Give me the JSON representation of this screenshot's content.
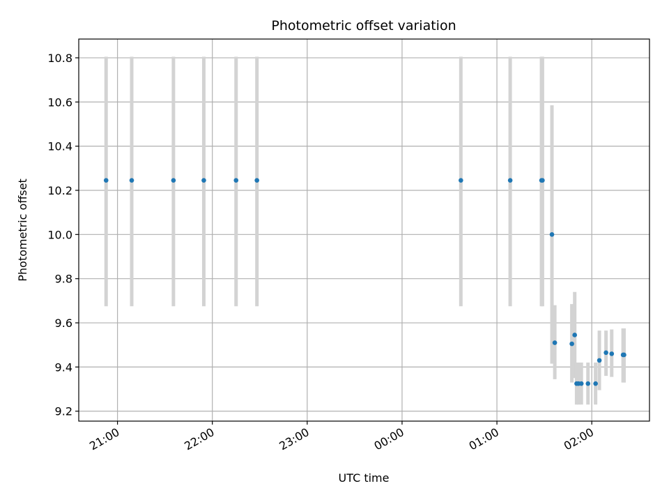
{
  "chart_data": {
    "type": "scatter",
    "title": "Photometric offset variation",
    "xlabel": "UTC time",
    "ylabel": "Photometric offset",
    "grid": true,
    "x_tick_labels": [
      "21:00",
      "22:00",
      "23:00",
      "00:00",
      "01:00",
      "02:00"
    ],
    "x_tick_minutes": [
      0,
      60,
      120,
      180,
      240,
      300
    ],
    "x_tick_rotation_deg": 30,
    "xlim_minutes": [
      -24.5,
      336.5
    ],
    "y_ticks": [
      9.2,
      9.4,
      9.6,
      9.8,
      10.0,
      10.2,
      10.4,
      10.6,
      10.8
    ],
    "y_tick_labels": [
      "9.2",
      "9.4",
      "9.6",
      "9.8",
      "10.0",
      "10.2",
      "10.4",
      "10.6",
      "10.8"
    ],
    "ylim": [
      9.155,
      10.885
    ],
    "colors": {
      "point": "#1f77b4",
      "errorbar": "#d3d3d3",
      "grid": "#b0b0b0"
    },
    "points": [
      {
        "t": 20.88,
        "y": 10.245,
        "lo": 9.675,
        "hi": 10.805
      },
      {
        "t": 21.15,
        "y": 10.245,
        "lo": 9.675,
        "hi": 10.805
      },
      {
        "t": 21.59,
        "y": 10.245,
        "lo": 9.675,
        "hi": 10.805
      },
      {
        "t": 21.91,
        "y": 10.245,
        "lo": 9.675,
        "hi": 10.805
      },
      {
        "t": 22.25,
        "y": 10.245,
        "lo": 9.675,
        "hi": 10.805
      },
      {
        "t": 22.47,
        "y": 10.245,
        "lo": 9.675,
        "hi": 10.805
      },
      {
        "t": 24.62,
        "y": 10.245,
        "lo": 9.675,
        "hi": 10.805
      },
      {
        "t": 25.14,
        "y": 10.245,
        "lo": 9.675,
        "hi": 10.805
      },
      {
        "t": 25.47,
        "y": 10.245,
        "lo": 9.675,
        "hi": 10.805
      },
      {
        "t": 25.48,
        "y": 10.245,
        "lo": 9.675,
        "hi": 10.805
      },
      {
        "t": 25.58,
        "y": 10.0,
        "lo": 9.415,
        "hi": 10.585
      },
      {
        "t": 25.61,
        "y": 9.51,
        "lo": 9.345,
        "hi": 9.68
      },
      {
        "t": 25.79,
        "y": 9.505,
        "lo": 9.33,
        "hi": 9.685
      },
      {
        "t": 25.82,
        "y": 9.545,
        "lo": 9.35,
        "hi": 9.74
      },
      {
        "t": 25.84,
        "y": 9.325,
        "lo": 9.23,
        "hi": 9.42
      },
      {
        "t": 25.86,
        "y": 9.325,
        "lo": 9.23,
        "hi": 9.42
      },
      {
        "t": 25.89,
        "y": 9.325,
        "lo": 9.23,
        "hi": 9.42
      },
      {
        "t": 25.96,
        "y": 9.325,
        "lo": 9.23,
        "hi": 9.42
      },
      {
        "t": 26.04,
        "y": 9.325,
        "lo": 9.23,
        "hi": 9.42
      },
      {
        "t": 26.08,
        "y": 9.43,
        "lo": 9.295,
        "hi": 9.565
      },
      {
        "t": 26.15,
        "y": 9.465,
        "lo": 9.36,
        "hi": 9.565
      },
      {
        "t": 26.21,
        "y": 9.46,
        "lo": 9.355,
        "hi": 9.57
      },
      {
        "t": 26.33,
        "y": 9.455,
        "lo": 9.33,
        "hi": 9.575
      },
      {
        "t": 26.34,
        "y": 9.455,
        "lo": 9.33,
        "hi": 9.575
      }
    ]
  }
}
